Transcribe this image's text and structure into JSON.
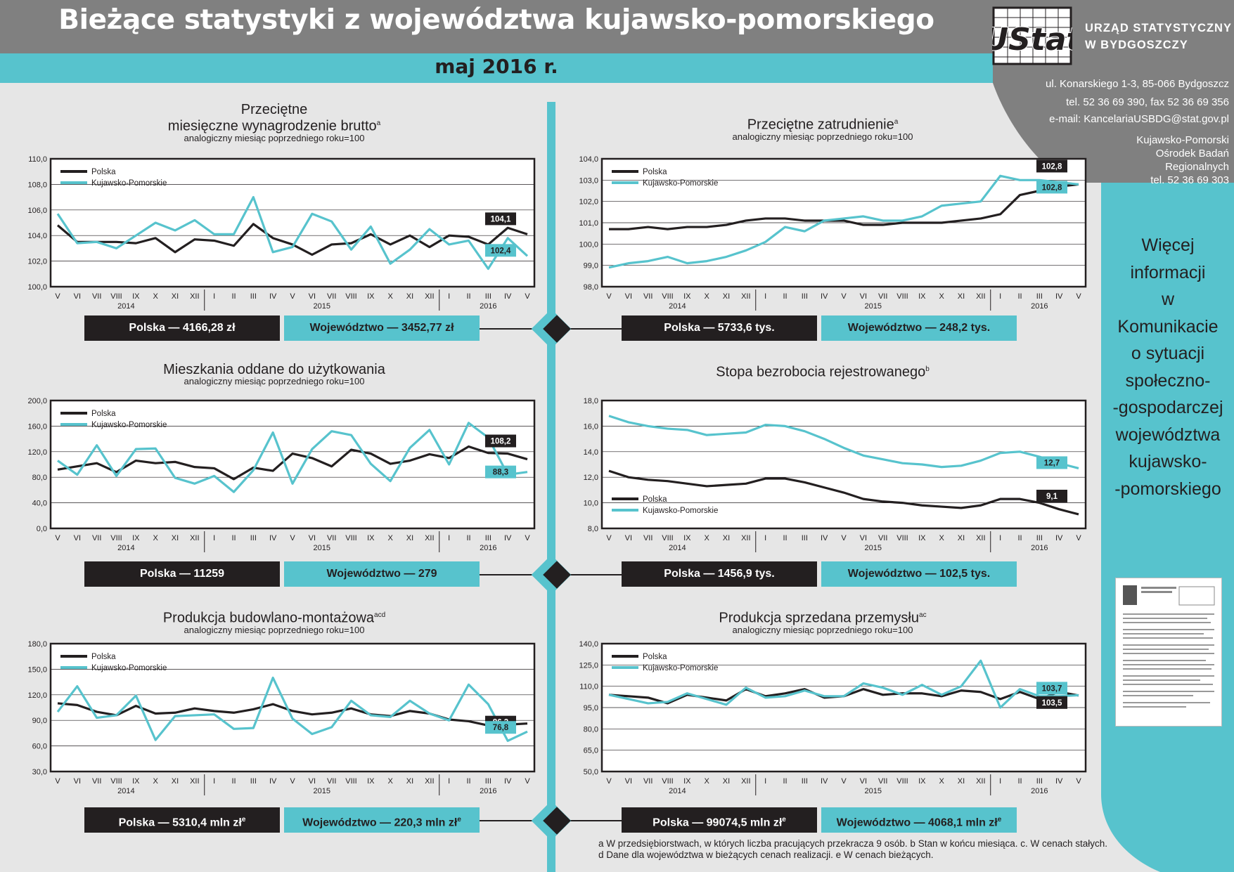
{
  "header": {
    "title": "Bieżące statystyki z województwa kujawsko-pomorskiego",
    "date": "maj 2016 r."
  },
  "office": {
    "logo_text": "UStat",
    "name_line1": "URZĄD STATYSTYCZNY",
    "name_line2": "W BYDGOSZCZY",
    "address": "ul. Konarskiego 1-3, 85-066 Bydgoszcz",
    "phone": "tel. 52 36 69 390, fax 52 36 69 356",
    "email": "e-mail: KancelariaUSBDG@stat.gov.pl",
    "center_line1": "Kujawsko-Pomorski",
    "center_line2": "Ośrodek Badań",
    "center_line3": "Regionalnych",
    "center_phone": "tel. 52 36 69 303"
  },
  "more_info": [
    "Więcej",
    "informacji",
    "w",
    "Komunikacie",
    "o sytuacji",
    "społeczno-",
    "-gospodarczej",
    "województwa",
    "kujawsko-",
    "-pomorskiego"
  ],
  "colors": {
    "teal": "#57c3cd",
    "dark": "#231f20",
    "gray": "#808080",
    "background": "#e6e6e6"
  },
  "legend": {
    "polska": "Polska",
    "region": "Kujawsko-Pomorskie"
  },
  "footnotes": {
    "line1": "a  W przedsiębiorstwach, w których liczba pracujących przekracza 9 osób.  b Stan w końcu miesiąca.  c. W cenach stałych.",
    "line2": "d  Dane dla województwa w bieżących cenach realizacji.  e W cenach bieżących."
  },
  "chart_data": [
    {
      "id": "wages",
      "type": "line",
      "title_line1": "Przeciętne",
      "title_line2": "miesięczne wynagrodzenie brutto",
      "title_sup": "a",
      "subtitle": "analogiczny miesiąc poprzedniego roku=100",
      "x": [
        "V",
        "VI",
        "VII",
        "VIII",
        "IX",
        "X",
        "XI",
        "XII",
        "I",
        "II",
        "III",
        "IV",
        "V",
        "VI",
        "VII",
        "VIII",
        "IX",
        "X",
        "XI",
        "XII",
        "I",
        "II",
        "III",
        "IV",
        "V"
      ],
      "year_labels": [
        "2014",
        "2015",
        "2016"
      ],
      "ylim": [
        100,
        110
      ],
      "yticks": [
        100,
        102,
        104,
        106,
        108,
        110
      ],
      "decimals": 1,
      "series": [
        {
          "name": "Polska",
          "values": [
            104.8,
            103.5,
            103.5,
            103.5,
            103.4,
            103.8,
            102.7,
            103.7,
            103.6,
            103.2,
            104.9,
            103.8,
            103.3,
            102.5,
            103.3,
            103.4,
            104.1,
            103.3,
            104.0,
            103.1,
            104.0,
            103.9,
            103.3,
            104.6,
            104.1
          ]
        },
        {
          "name": "Kujawsko-Pomorskie",
          "values": [
            105.7,
            103.4,
            103.5,
            103.0,
            104.0,
            105.0,
            104.4,
            105.2,
            104.1,
            104.1,
            107.0,
            102.7,
            103.1,
            105.7,
            105.1,
            102.9,
            104.7,
            101.8,
            102.9,
            104.5,
            103.3,
            103.6,
            101.4,
            103.8,
            102.4
          ]
        }
      ],
      "labels": [
        "104,1",
        "102,4"
      ],
      "summary": {
        "polska": "Polska — 4166,28 zł",
        "region": "Województwo — 3452,77 zł"
      }
    },
    {
      "id": "employment",
      "type": "line",
      "title_line1": "Przeciętne zatrudnienie",
      "title_sup": "a",
      "subtitle": "analogiczny miesiąc poprzedniego roku=100",
      "x": [
        "V",
        "VI",
        "VII",
        "VIII",
        "IX",
        "X",
        "XI",
        "XII",
        "I",
        "II",
        "III",
        "IV",
        "V",
        "VI",
        "VII",
        "VIII",
        "IX",
        "X",
        "XI",
        "XII",
        "I",
        "II",
        "III",
        "IV",
        "V"
      ],
      "year_labels": [
        "2014",
        "2015",
        "2016"
      ],
      "ylim": [
        98,
        104
      ],
      "yticks": [
        98,
        99,
        100,
        101,
        102,
        103,
        104
      ],
      "decimals": 1,
      "series": [
        {
          "name": "Polska",
          "values": [
            100.7,
            100.7,
            100.8,
            100.7,
            100.8,
            100.8,
            100.9,
            101.1,
            101.2,
            101.2,
            101.1,
            101.1,
            101.1,
            100.9,
            100.9,
            101.0,
            101.0,
            101.0,
            101.1,
            101.2,
            101.4,
            102.3,
            102.5,
            102.7,
            102.8
          ]
        },
        {
          "name": "Kujawsko-Pomorskie",
          "values": [
            98.9,
            99.1,
            99.2,
            99.4,
            99.1,
            99.2,
            99.4,
            99.7,
            100.1,
            100.8,
            100.6,
            101.1,
            101.2,
            101.3,
            101.1,
            101.1,
            101.3,
            101.8,
            101.9,
            102.0,
            103.2,
            103.0,
            103.0,
            102.9,
            102.8
          ]
        }
      ],
      "labels": [
        "102,8",
        "102,8"
      ],
      "summary": {
        "polska": "Polska — 5733,6 tys.",
        "region": "Województwo — 248,2 tys."
      }
    },
    {
      "id": "housing",
      "type": "line",
      "title_line1": "Mieszkania oddane do użytkowania",
      "subtitle": "analogiczny miesiąc poprzedniego roku=100",
      "x": [
        "V",
        "VI",
        "VII",
        "VIII",
        "IX",
        "X",
        "XI",
        "XII",
        "I",
        "II",
        "III",
        "IV",
        "V",
        "VI",
        "VII",
        "VIII",
        "IX",
        "X",
        "XI",
        "XII",
        "I",
        "II",
        "III",
        "IV",
        "V"
      ],
      "year_labels": [
        "2014",
        "2015",
        "2016"
      ],
      "ylim": [
        0,
        200
      ],
      "yticks": [
        0,
        40,
        80,
        120,
        160,
        200
      ],
      "decimals": 1,
      "series": [
        {
          "name": "Polska",
          "values": [
            92,
            97,
            102,
            88,
            106,
            102,
            104,
            96,
            94,
            77,
            95,
            90,
            117,
            110,
            97,
            123,
            117,
            101,
            106,
            116,
            110,
            128,
            118,
            117,
            108.2
          ]
        },
        {
          "name": "Kujawsko-Pomorskie",
          "values": [
            106,
            84,
            130,
            82,
            124,
            125,
            79,
            70,
            82,
            57,
            91,
            150,
            70,
            124,
            152,
            146,
            101,
            74,
            126,
            154,
            100,
            165,
            142,
            84,
            88.3
          ]
        }
      ],
      "labels": [
        "108,2",
        "88,3"
      ],
      "summary": {
        "polska": "Polska — 11259",
        "region": "Województwo — 279"
      }
    },
    {
      "id": "unemployment",
      "type": "line",
      "title_line1": "Stopa bezrobocia rejestrowanego",
      "title_sup": "b",
      "x": [
        "V",
        "VI",
        "VII",
        "VIII",
        "IX",
        "X",
        "XI",
        "XII",
        "I",
        "II",
        "III",
        "IV",
        "V",
        "VI",
        "VII",
        "VIII",
        "IX",
        "X",
        "XI",
        "XII",
        "I",
        "II",
        "III",
        "IV",
        "V"
      ],
      "year_labels": [
        "2014",
        "2015",
        "2016"
      ],
      "ylim": [
        8,
        18
      ],
      "yticks": [
        8,
        10,
        12,
        14,
        16,
        18
      ],
      "decimals": 1,
      "series": [
        {
          "name": "Polska",
          "values": [
            12.5,
            12.0,
            11.8,
            11.7,
            11.5,
            11.3,
            11.4,
            11.5,
            11.9,
            11.9,
            11.6,
            11.2,
            10.8,
            10.3,
            10.1,
            10.0,
            9.8,
            9.7,
            9.6,
            9.8,
            10.3,
            10.3,
            10.0,
            9.5,
            9.1
          ]
        },
        {
          "name": "Kujawsko-Pomorskie",
          "values": [
            16.8,
            16.3,
            16.0,
            15.8,
            15.7,
            15.3,
            15.4,
            15.5,
            16.1,
            16.0,
            15.6,
            15.0,
            14.3,
            13.7,
            13.4,
            13.1,
            13.0,
            12.8,
            12.9,
            13.3,
            13.9,
            14.0,
            13.6,
            13.1,
            12.7
          ]
        }
      ],
      "labels": [
        "12,7",
        "9,1"
      ],
      "summary": {
        "polska": "Polska — 1456,9 tys.",
        "region": "Województwo — 102,5 tys."
      }
    },
    {
      "id": "construction",
      "type": "line",
      "title_line1": "Produkcja budowlano-montażowa",
      "title_sup": "acd",
      "subtitle": "analogiczny miesiąc poprzedniego roku=100",
      "x": [
        "V",
        "VI",
        "VII",
        "VIII",
        "IX",
        "X",
        "XI",
        "XII",
        "I",
        "II",
        "III",
        "IV",
        "V",
        "VI",
        "VII",
        "VIII",
        "IX",
        "X",
        "XI",
        "XII",
        "I",
        "II",
        "III",
        "IV",
        "V"
      ],
      "year_labels": [
        "2014",
        "2015",
        "2016"
      ],
      "ylim": [
        30,
        180
      ],
      "yticks": [
        30,
        60,
        90,
        120,
        150,
        180
      ],
      "decimals": 1,
      "series": [
        {
          "name": "Polska",
          "values": [
            110,
            108,
            100,
            96,
            107,
            98,
            99,
            104,
            101,
            99,
            103,
            109,
            101,
            97,
            99,
            104,
            97,
            95,
            101,
            98,
            91,
            89,
            84,
            85,
            86.3
          ]
        },
        {
          "name": "Kujawsko-Pomorskie",
          "values": [
            100,
            130,
            93,
            96,
            119,
            67,
            95,
            96,
            97,
            80,
            81,
            140,
            92,
            74,
            82,
            113,
            96,
            94,
            113,
            98,
            90,
            132,
            109,
            66,
            76.8
          ]
        }
      ],
      "labels": [
        "86,3",
        "76,8"
      ],
      "summary": {
        "polska": "Polska — 5310,4 mln zł",
        "region": "Województwo — 220,3 mln zł",
        "sup": "e"
      }
    },
    {
      "id": "industry",
      "type": "line",
      "title_line1": "Produkcja sprzedana przemysłu",
      "title_sup": "ac",
      "subtitle": "analogiczny miesiąc poprzedniego roku=100",
      "x": [
        "V",
        "VI",
        "VII",
        "VIII",
        "IX",
        "X",
        "XI",
        "XII",
        "I",
        "II",
        "III",
        "IV",
        "V",
        "VI",
        "VII",
        "VIII",
        "IX",
        "X",
        "XI",
        "XII",
        "I",
        "II",
        "III",
        "IV",
        "V"
      ],
      "year_labels": [
        "2014",
        "2015",
        "2016"
      ],
      "ylim": [
        50,
        140
      ],
      "yticks": [
        50,
        65,
        80,
        95,
        110,
        125,
        140
      ],
      "decimals": 1,
      "series": [
        {
          "name": "Polska",
          "values": [
            104,
            103,
            102,
            98,
            104,
            102,
            100,
            108,
            103,
            105,
            108,
            102,
            103,
            108,
            104,
            105,
            105,
            103,
            107,
            106,
            101,
            106,
            101,
            106,
            103.5
          ]
        },
        {
          "name": "Kujawsko-Pomorskie",
          "values": [
            104,
            101,
            98,
            99,
            105,
            101,
            97,
            109,
            102,
            103,
            107,
            103,
            103,
            112,
            109,
            104,
            111,
            104,
            110,
            128,
            95,
            108,
            103,
            103,
            103.7
          ]
        }
      ],
      "labels": [
        "103,7",
        "103,5"
      ],
      "summary": {
        "polska": "Polska — 99074,5 mln zł",
        "region": "Województwo — 4068,1 mln zł",
        "sup": "e"
      }
    }
  ]
}
